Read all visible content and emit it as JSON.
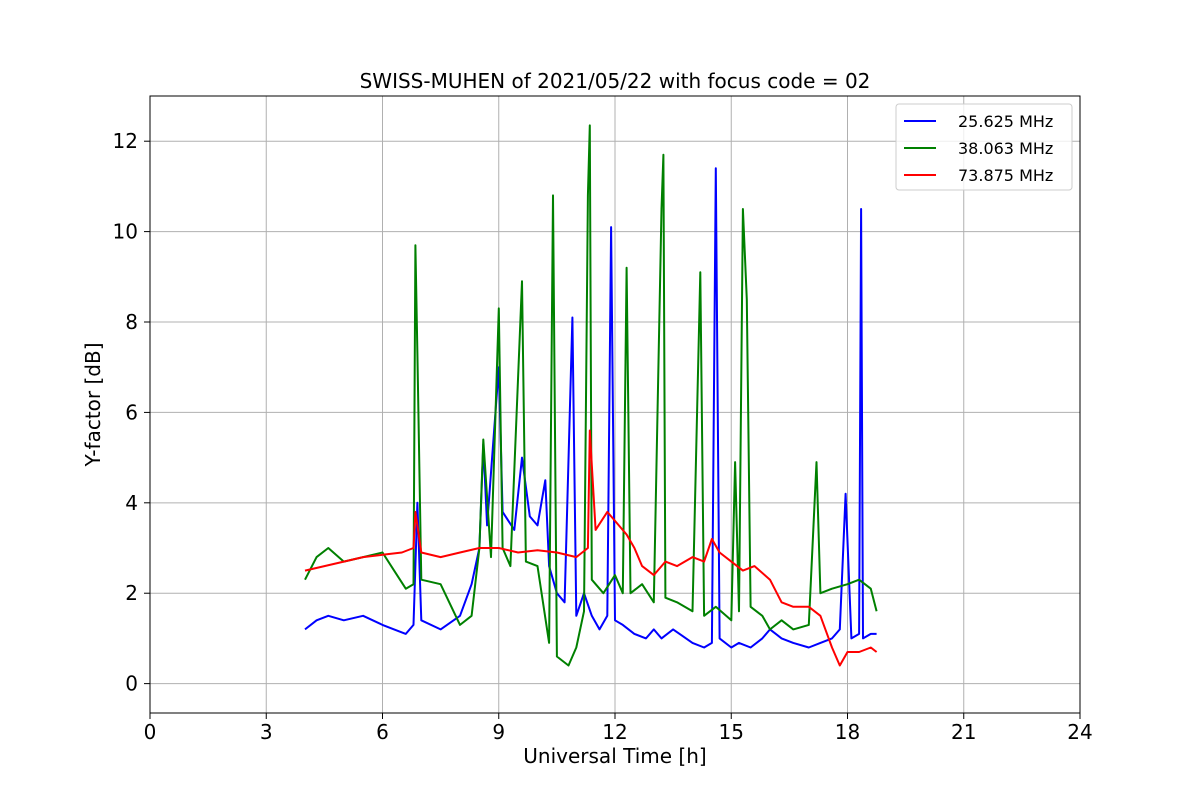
{
  "chart_data": {
    "type": "line",
    "title": "SWISS-MUHEN of 2021/05/22 with focus code = 02",
    "xlabel": "Universal Time [h]",
    "ylabel": "Y-factor [dB]",
    "xlim": [
      0,
      24
    ],
    "ylim": [
      -0.65,
      13.0
    ],
    "xticks": [
      0,
      3,
      6,
      9,
      12,
      15,
      18,
      21,
      24
    ],
    "yticks": [
      0,
      2,
      4,
      6,
      8,
      10,
      12
    ],
    "grid": true,
    "legend_position": "top-right",
    "series": [
      {
        "name": "25.625 MHz",
        "color": "#0000ff",
        "points": [
          [
            4.0,
            1.2
          ],
          [
            4.3,
            1.4
          ],
          [
            4.6,
            1.5
          ],
          [
            5.0,
            1.4
          ],
          [
            5.5,
            1.5
          ],
          [
            6.0,
            1.3
          ],
          [
            6.3,
            1.2
          ],
          [
            6.6,
            1.1
          ],
          [
            6.8,
            1.3
          ],
          [
            6.9,
            4.0
          ],
          [
            7.0,
            1.4
          ],
          [
            7.5,
            1.2
          ],
          [
            8.0,
            1.5
          ],
          [
            8.3,
            2.2
          ],
          [
            8.5,
            3.0
          ],
          [
            8.6,
            5.3
          ],
          [
            8.7,
            3.5
          ],
          [
            9.0,
            7.0
          ],
          [
            9.1,
            3.8
          ],
          [
            9.4,
            3.4
          ],
          [
            9.6,
            5.0
          ],
          [
            9.8,
            3.7
          ],
          [
            10.0,
            3.5
          ],
          [
            10.2,
            4.5
          ],
          [
            10.3,
            2.6
          ],
          [
            10.5,
            2.0
          ],
          [
            10.7,
            1.8
          ],
          [
            10.9,
            8.1
          ],
          [
            11.0,
            1.5
          ],
          [
            11.2,
            2.0
          ],
          [
            11.4,
            1.5
          ],
          [
            11.6,
            1.2
          ],
          [
            11.8,
            1.5
          ],
          [
            11.9,
            10.1
          ],
          [
            12.0,
            1.4
          ],
          [
            12.2,
            1.3
          ],
          [
            12.5,
            1.1
          ],
          [
            12.8,
            1.0
          ],
          [
            13.0,
            1.2
          ],
          [
            13.2,
            1.0
          ],
          [
            13.5,
            1.2
          ],
          [
            14.0,
            0.9
          ],
          [
            14.3,
            0.8
          ],
          [
            14.5,
            0.9
          ],
          [
            14.6,
            11.4
          ],
          [
            14.7,
            1.0
          ],
          [
            15.0,
            0.8
          ],
          [
            15.2,
            0.9
          ],
          [
            15.5,
            0.8
          ],
          [
            15.8,
            1.0
          ],
          [
            16.0,
            1.2
          ],
          [
            16.3,
            1.0
          ],
          [
            16.6,
            0.9
          ],
          [
            17.0,
            0.8
          ],
          [
            17.3,
            0.9
          ],
          [
            17.6,
            1.0
          ],
          [
            17.8,
            1.2
          ],
          [
            17.95,
            4.2
          ],
          [
            18.1,
            1.0
          ],
          [
            18.3,
            1.1
          ],
          [
            18.35,
            10.5
          ],
          [
            18.4,
            1.0
          ],
          [
            18.6,
            1.1
          ],
          [
            18.75,
            1.1
          ]
        ]
      },
      {
        "name": "38.063 MHz",
        "color": "#008000",
        "points": [
          [
            4.0,
            2.3
          ],
          [
            4.3,
            2.8
          ],
          [
            4.6,
            3.0
          ],
          [
            5.0,
            2.7
          ],
          [
            5.5,
            2.8
          ],
          [
            6.0,
            2.9
          ],
          [
            6.3,
            2.5
          ],
          [
            6.6,
            2.1
          ],
          [
            6.8,
            2.2
          ],
          [
            6.85,
            9.7
          ],
          [
            6.9,
            7.3
          ],
          [
            7.0,
            2.3
          ],
          [
            7.5,
            2.2
          ],
          [
            8.0,
            1.3
          ],
          [
            8.3,
            1.5
          ],
          [
            8.5,
            3.0
          ],
          [
            8.6,
            5.4
          ],
          [
            8.8,
            2.8
          ],
          [
            9.0,
            8.3
          ],
          [
            9.1,
            3.0
          ],
          [
            9.3,
            2.6
          ],
          [
            9.6,
            8.9
          ],
          [
            9.7,
            2.7
          ],
          [
            10.0,
            2.6
          ],
          [
            10.3,
            0.9
          ],
          [
            10.4,
            10.8
          ],
          [
            10.5,
            0.6
          ],
          [
            10.8,
            0.4
          ],
          [
            11.0,
            0.8
          ],
          [
            11.2,
            1.6
          ],
          [
            11.3,
            10.8
          ],
          [
            11.35,
            12.35
          ],
          [
            11.4,
            2.3
          ],
          [
            11.7,
            2.0
          ],
          [
            12.0,
            2.4
          ],
          [
            12.2,
            2.0
          ],
          [
            12.3,
            9.2
          ],
          [
            12.4,
            2.0
          ],
          [
            12.7,
            2.2
          ],
          [
            13.0,
            1.8
          ],
          [
            13.2,
            10.5
          ],
          [
            13.25,
            11.7
          ],
          [
            13.3,
            1.9
          ],
          [
            13.6,
            1.8
          ],
          [
            14.0,
            1.6
          ],
          [
            14.2,
            9.1
          ],
          [
            14.3,
            1.5
          ],
          [
            14.6,
            1.7
          ],
          [
            15.0,
            1.4
          ],
          [
            15.1,
            4.9
          ],
          [
            15.2,
            1.6
          ],
          [
            15.3,
            10.5
          ],
          [
            15.4,
            8.5
          ],
          [
            15.5,
            1.7
          ],
          [
            15.8,
            1.5
          ],
          [
            16.0,
            1.2
          ],
          [
            16.3,
            1.4
          ],
          [
            16.6,
            1.2
          ],
          [
            17.0,
            1.3
          ],
          [
            17.2,
            4.9
          ],
          [
            17.3,
            2.0
          ],
          [
            17.6,
            2.1
          ],
          [
            18.0,
            2.2
          ],
          [
            18.3,
            2.3
          ],
          [
            18.6,
            2.1
          ],
          [
            18.75,
            1.6
          ]
        ]
      },
      {
        "name": "73.875 MHz",
        "color": "#ff0000",
        "points": [
          [
            4.0,
            2.5
          ],
          [
            4.5,
            2.6
          ],
          [
            5.0,
            2.7
          ],
          [
            5.5,
            2.8
          ],
          [
            6.0,
            2.85
          ],
          [
            6.5,
            2.9
          ],
          [
            6.8,
            3.0
          ],
          [
            6.85,
            3.8
          ],
          [
            7.0,
            2.9
          ],
          [
            7.5,
            2.8
          ],
          [
            8.0,
            2.9
          ],
          [
            8.5,
            3.0
          ],
          [
            9.0,
            3.0
          ],
          [
            9.5,
            2.9
          ],
          [
            10.0,
            2.95
          ],
          [
            10.5,
            2.9
          ],
          [
            11.0,
            2.8
          ],
          [
            11.3,
            3.0
          ],
          [
            11.35,
            5.6
          ],
          [
            11.5,
            3.4
          ],
          [
            11.8,
            3.8
          ],
          [
            12.0,
            3.6
          ],
          [
            12.3,
            3.3
          ],
          [
            12.5,
            3.0
          ],
          [
            12.7,
            2.6
          ],
          [
            13.0,
            2.4
          ],
          [
            13.3,
            2.7
          ],
          [
            13.6,
            2.6
          ],
          [
            14.0,
            2.8
          ],
          [
            14.3,
            2.7
          ],
          [
            14.5,
            3.2
          ],
          [
            14.7,
            2.9
          ],
          [
            15.0,
            2.7
          ],
          [
            15.3,
            2.5
          ],
          [
            15.6,
            2.6
          ],
          [
            16.0,
            2.3
          ],
          [
            16.3,
            1.8
          ],
          [
            16.6,
            1.7
          ],
          [
            17.0,
            1.7
          ],
          [
            17.3,
            1.5
          ],
          [
            17.6,
            0.8
          ],
          [
            17.8,
            0.4
          ],
          [
            18.0,
            0.7
          ],
          [
            18.3,
            0.7
          ],
          [
            18.6,
            0.8
          ],
          [
            18.75,
            0.7
          ]
        ]
      }
    ]
  }
}
